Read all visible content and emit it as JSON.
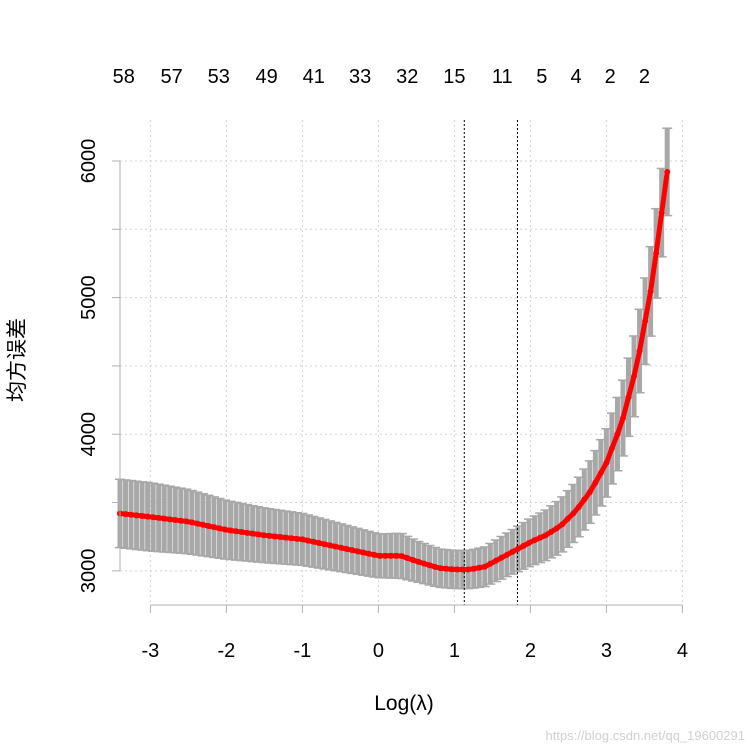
{
  "chart_data": {
    "type": "line",
    "xlabel": "Log(λ)",
    "ylabel": "均方误差",
    "xlim": [
      -3.4,
      4.1
    ],
    "ylim": [
      2750,
      6300
    ],
    "x_ticks": [
      -3,
      -2,
      -1,
      0,
      1,
      2,
      3,
      4
    ],
    "y_ticks": [
      3000,
      4000,
      5000,
      6000
    ],
    "grid": true,
    "top_axis": {
      "x": [
        -3.35,
        -2.72,
        -2.1,
        -1.47,
        -0.85,
        -0.24,
        0.38,
        1.0,
        1.63,
        2.15,
        2.6,
        3.05,
        3.5
      ],
      "labels": [
        "58",
        "57",
        "53",
        "49",
        "41",
        "33",
        "32",
        "15",
        "11",
        "5",
        "4",
        "2",
        "2"
      ]
    },
    "vlines": [
      1.13,
      1.83
    ],
    "series": [
      {
        "x": [
          -3.4,
          -3.0,
          -2.5,
          -2.0,
          -1.5,
          -1.0,
          -0.5,
          0.0,
          0.3,
          0.5,
          0.8,
          1.0,
          1.2,
          1.4,
          1.6,
          1.8,
          2.0,
          2.2,
          2.4,
          2.6,
          2.8,
          3.0,
          3.2,
          3.4,
          3.6,
          3.8
        ],
        "values": [
          3420,
          3395,
          3360,
          3300,
          3260,
          3230,
          3170,
          3110,
          3110,
          3070,
          3020,
          3010,
          3010,
          3030,
          3090,
          3150,
          3210,
          3260,
          3330,
          3440,
          3590,
          3790,
          4080,
          4500,
          5100,
          5920
        ],
        "se": [
          250,
          250,
          235,
          215,
          200,
          190,
          175,
          160,
          165,
          150,
          140,
          140,
          140,
          145,
          155,
          165,
          175,
          185,
          200,
          215,
          230,
          250,
          275,
          300,
          330,
          320
        ]
      }
    ],
    "colors": {
      "line": "#ff0000",
      "band": "#a8a8a8",
      "grid": "#d3d3d3"
    }
  },
  "watermark": "https://blog.csdn.net/qq_19600291"
}
